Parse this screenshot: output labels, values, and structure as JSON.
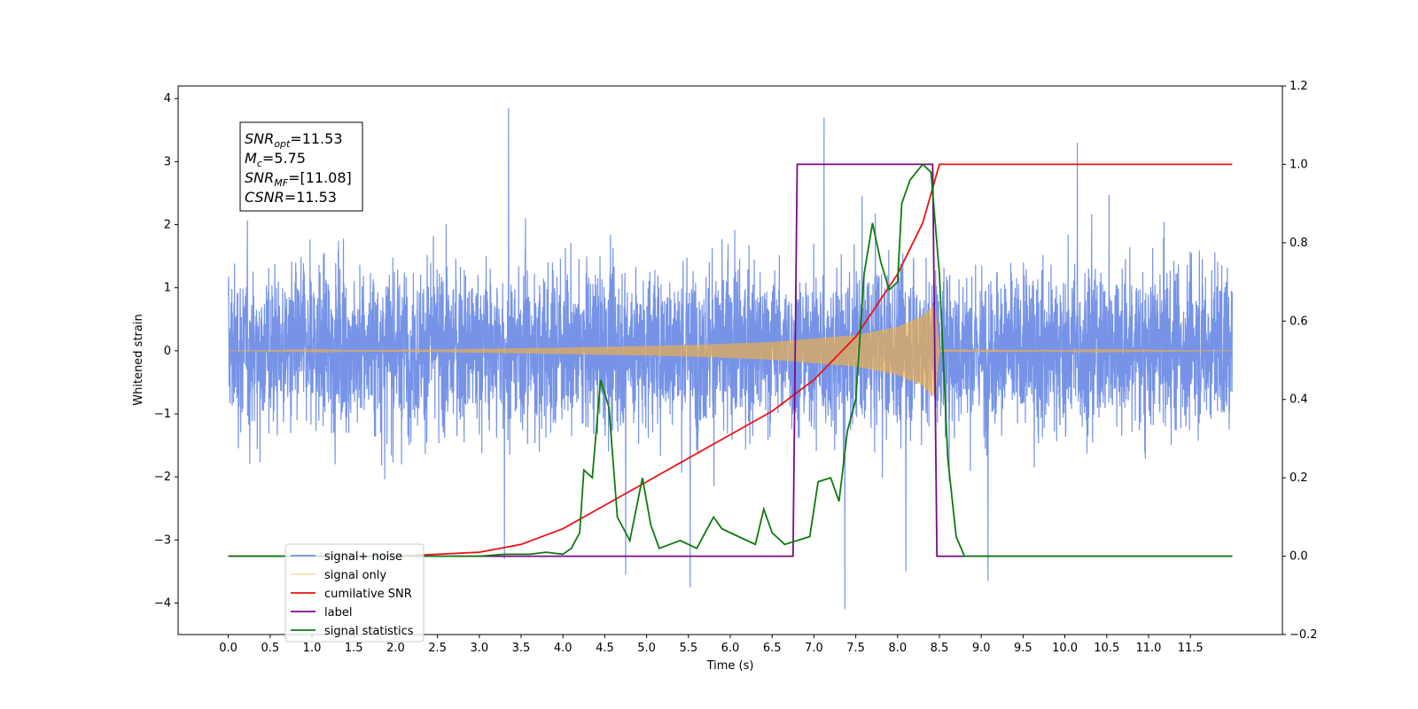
{
  "chart_data": {
    "type": "line",
    "xlabel": "Time (s)",
    "ylabel": "Whitened strain",
    "xlim": [
      -0.6,
      12.6
    ],
    "ylim_left": [
      -4.5,
      4.2
    ],
    "ylim_right": [
      -0.2,
      1.2
    ],
    "xticks": [
      0.0,
      0.5,
      1.0,
      1.5,
      2.0,
      2.5,
      3.0,
      3.5,
      4.0,
      4.5,
      5.0,
      5.5,
      6.0,
      6.5,
      7.0,
      7.5,
      8.0,
      8.5,
      9.0,
      9.5,
      10.0,
      10.5,
      11.0,
      11.5
    ],
    "xtick_labels": [
      "0.0",
      "0.5",
      "1.0",
      "1.5",
      "2.0",
      "2.5",
      "3.0",
      "3.5",
      "4.0",
      "4.5",
      "5.0",
      "5.5",
      "6.0",
      "6.5",
      "7.0",
      "7.5",
      "8.0",
      "8.5",
      "9.0",
      "9.5",
      "10.0",
      "10.5",
      "11.0",
      "11.5"
    ],
    "yticks_left": [
      -4,
      -3,
      -2,
      -1,
      0,
      1,
      2,
      3,
      4
    ],
    "ytick_labels_left": [
      "−4",
      "−3",
      "−2",
      "−1",
      "0",
      "1",
      "2",
      "3",
      "4"
    ],
    "yticks_right": [
      -0.2,
      0.0,
      0.2,
      0.4,
      0.6,
      0.8,
      1.0,
      1.2
    ],
    "ytick_labels_right": [
      "−0.2",
      "0.0",
      "0.2",
      "0.4",
      "0.6",
      "0.8",
      "1.0",
      "1.2"
    ],
    "grid": false,
    "legend_position": "lower-left",
    "annotation": {
      "lines": [
        {
          "base": "SNR",
          "sub": "opt",
          "rest": "=11.53"
        },
        {
          "base": "M",
          "sub": "c",
          "rest": "=5.75"
        },
        {
          "base": "SNR",
          "sub": "MF",
          "rest": "=[11.08]"
        },
        {
          "base": "CSNR",
          "sub": "",
          "rest": "=11.53"
        }
      ]
    },
    "series": [
      {
        "name": "signal+ noise",
        "axis": "left",
        "color": "#6f8de6",
        "kind": "noise",
        "x_range": [
          0.0,
          12.0
        ],
        "typical_envelope": [
          -1.9,
          2.3
        ],
        "spikes": [
          {
            "x": 3.35,
            "y": 3.85
          },
          {
            "x": 7.12,
            "y": 3.7
          },
          {
            "x": 10.15,
            "y": 3.3
          },
          {
            "x": 3.3,
            "y": -3.3
          },
          {
            "x": 4.75,
            "y": -3.55
          },
          {
            "x": 5.52,
            "y": -3.75
          },
          {
            "x": 7.37,
            "y": -4.1
          },
          {
            "x": 8.1,
            "y": -3.5
          },
          {
            "x": 9.08,
            "y": -3.65
          }
        ]
      },
      {
        "name": "signal only",
        "axis": "left",
        "color": "#f5b042",
        "kind": "chirp",
        "x_range": [
          0.0,
          12.0
        ],
        "merger_time": 8.45,
        "envelope_points": [
          [
            0.0,
            0.0
          ],
          [
            2.5,
            0.02
          ],
          [
            4.0,
            0.05
          ],
          [
            5.5,
            0.09
          ],
          [
            6.5,
            0.14
          ],
          [
            7.5,
            0.25
          ],
          [
            8.0,
            0.38
          ],
          [
            8.3,
            0.55
          ],
          [
            8.45,
            0.75
          ],
          [
            8.5,
            0.02
          ],
          [
            12.0,
            0.0
          ]
        ]
      },
      {
        "name": "cumilative SNR",
        "axis": "right",
        "color": "#ee1111",
        "points": [
          [
            0.0,
            0.0
          ],
          [
            2.0,
            0.0
          ],
          [
            3.0,
            0.01
          ],
          [
            3.5,
            0.03
          ],
          [
            4.0,
            0.07
          ],
          [
            4.5,
            0.13
          ],
          [
            5.0,
            0.19
          ],
          [
            5.5,
            0.25
          ],
          [
            6.0,
            0.31
          ],
          [
            6.5,
            0.37
          ],
          [
            7.0,
            0.45
          ],
          [
            7.5,
            0.56
          ],
          [
            8.0,
            0.72
          ],
          [
            8.3,
            0.85
          ],
          [
            8.5,
            1.0
          ],
          [
            12.0,
            1.0
          ]
        ]
      },
      {
        "name": "label",
        "axis": "right",
        "color": "#7a0a8a",
        "points": [
          [
            0.0,
            0.0
          ],
          [
            6.75,
            0.0
          ],
          [
            6.8,
            1.0
          ],
          [
            8.42,
            1.0
          ],
          [
            8.47,
            0.0
          ],
          [
            12.0,
            0.0
          ]
        ]
      },
      {
        "name": "signal statistics",
        "axis": "right",
        "color": "#0f7a0f",
        "points": [
          [
            0.0,
            0.0
          ],
          [
            3.0,
            0.0
          ],
          [
            3.3,
            0.005
          ],
          [
            3.6,
            0.005
          ],
          [
            3.8,
            0.01
          ],
          [
            4.0,
            0.005
          ],
          [
            4.1,
            0.02
          ],
          [
            4.2,
            0.06
          ],
          [
            4.25,
            0.22
          ],
          [
            4.35,
            0.2
          ],
          [
            4.45,
            0.45
          ],
          [
            4.55,
            0.38
          ],
          [
            4.65,
            0.1
          ],
          [
            4.8,
            0.04
          ],
          [
            4.95,
            0.2
          ],
          [
            5.05,
            0.08
          ],
          [
            5.15,
            0.02
          ],
          [
            5.4,
            0.04
          ],
          [
            5.6,
            0.02
          ],
          [
            5.8,
            0.1
          ],
          [
            5.9,
            0.07
          ],
          [
            6.1,
            0.05
          ],
          [
            6.3,
            0.03
          ],
          [
            6.4,
            0.12
          ],
          [
            6.5,
            0.06
          ],
          [
            6.65,
            0.03
          ],
          [
            6.8,
            0.04
          ],
          [
            6.95,
            0.05
          ],
          [
            7.05,
            0.19
          ],
          [
            7.2,
            0.2
          ],
          [
            7.3,
            0.14
          ],
          [
            7.4,
            0.32
          ],
          [
            7.5,
            0.4
          ],
          [
            7.6,
            0.72
          ],
          [
            7.7,
            0.85
          ],
          [
            7.8,
            0.75
          ],
          [
            7.9,
            0.68
          ],
          [
            8.0,
            0.7
          ],
          [
            8.05,
            0.9
          ],
          [
            8.15,
            0.96
          ],
          [
            8.3,
            1.0
          ],
          [
            8.4,
            0.98
          ],
          [
            8.5,
            0.72
          ],
          [
            8.6,
            0.25
          ],
          [
            8.7,
            0.05
          ],
          [
            8.8,
            0.0
          ],
          [
            12.0,
            0.0
          ]
        ]
      }
    ]
  }
}
